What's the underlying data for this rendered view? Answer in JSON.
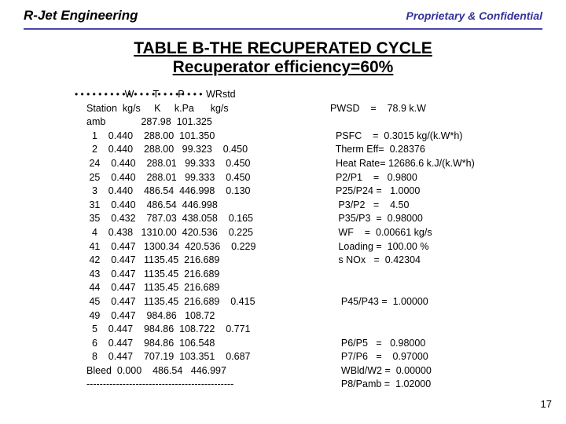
{
  "header": {
    "company": "R-Jet Engineering",
    "proprietary": "Proprietary & Confidential"
  },
  "title": {
    "line1": "TABLE  B-THE  RECUPERATED  CYCLE",
    "line2": "Recuperator  efficiency=60%"
  },
  "columns_header1": "              W       T       P        WRstd",
  "columns_header2": "Station  kg/s     K     k.Pa      kg/s",
  "table_rows": [
    "amb             287.98  101.325",
    "  1    0.440    288.00  101.350",
    "  2    0.440    288.00   99.323    0.450",
    " 24    0.440    288.01   99.333    0.450",
    " 25    0.440    288.01   99.333    0.450",
    "  3    0.440    486.54  446.998    0.130",
    " 31    0.440    486.54  446.998",
    " 35    0.432    787.03  438.058    0.165",
    "  4    0.438   1310.00  420.536    0.225",
    " 41    0.447   1300.34  420.536    0.229",
    " 42    0.447   1135.45  216.689",
    " 43    0.447   1135.45  216.689",
    " 44    0.447   1135.45  216.689",
    " 45    0.447   1135.45  216.689    0.415",
    " 49    0.447    984.86   108.72",
    "  5    0.447    984.86  108.722    0.771",
    "  6    0.447    984.86  106.548",
    "  8    0.447    707.19  103.351    0.687",
    "Bleed  0.000    486.54   446.997",
    "---------------------------------------------"
  ],
  "side_rows": [
    "",
    "PWSD    =    78.9 k.W",
    "",
    "  PSFC    =  0.3015 kg/(k.W*h)",
    "  Therm Eff=  0.28376",
    "  Heat Rate= 12686.6 k.J/(k.W*h)",
    "  P2/P1    =   0.9800",
    "  P25/P24 =   1.0000",
    "   P3/P2   =    4.50",
    "   P35/P3  =  0.98000",
    "   WF    =  0.00661 kg/s",
    "   Loading =  100.00 %",
    "   s NOx   =  0.42304",
    "",
    "",
    "    P45/P43 =  1.00000",
    "",
    "",
    "    P6/P5   =   0.98000",
    "    P7/P6   =    0.97000",
    "    WBld/W2 =  0.00000",
    "    P8/Pamb =  1.02000"
  ],
  "bullet_count": 22,
  "page_number": "17"
}
